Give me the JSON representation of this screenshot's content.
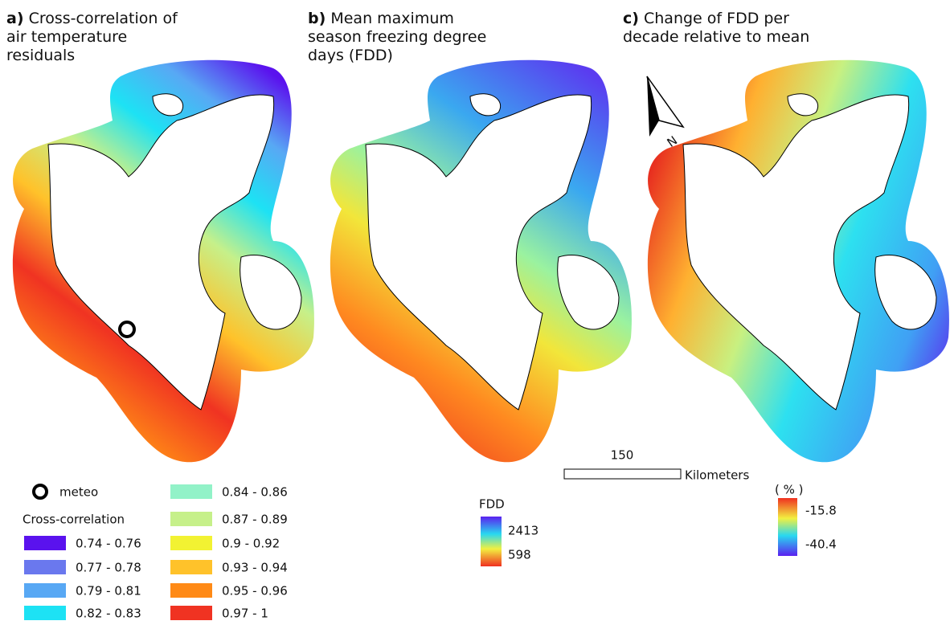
{
  "panels": [
    {
      "label": "a)",
      "title_lines": [
        "Cross-correlation of",
        "air temperature",
        "residuals"
      ]
    },
    {
      "label": "b)",
      "title_lines": [
        "Mean maximum",
        "season freezing degree",
        "days (FDD)"
      ]
    },
    {
      "label": "c)",
      "title_lines": [
        "Change of FDD per",
        "decade relative to mean"
      ]
    }
  ],
  "legend_a": {
    "marker": "meteo",
    "title": "Cross-correlation",
    "classes": [
      {
        "label": "0.74 - 0.76",
        "color": "#5a12ee"
      },
      {
        "label": "0.77 - 0.78",
        "color": "#6a78ee"
      },
      {
        "label": "0.79 - 0.81",
        "color": "#58a8f4"
      },
      {
        "label": "0.82 - 0.83",
        "color": "#1de2f4"
      },
      {
        "label": "0.84 - 0.86",
        "color": "#92f2c8"
      },
      {
        "label": "0.87 - 0.89",
        "color": "#c6f08a"
      },
      {
        "label": "0.9 - 0.92",
        "color": "#f2f232"
      },
      {
        "label": "0.93 - 0.94",
        "color": "#ffc22a"
      },
      {
        "label": "0.95 - 0.96",
        "color": "#ff8a16"
      },
      {
        "label": "0.97 - 1",
        "color": "#f03322"
      }
    ]
  },
  "colorbar_fdd": {
    "title": "FDD",
    "max": 2413,
    "min": 598
  },
  "colorbar_change": {
    "title": "( % )",
    "max": -15.8,
    "min": -40.4
  },
  "scale_bar": {
    "value": 150,
    "unit": "Kilometers"
  },
  "north_arrow": "N"
}
